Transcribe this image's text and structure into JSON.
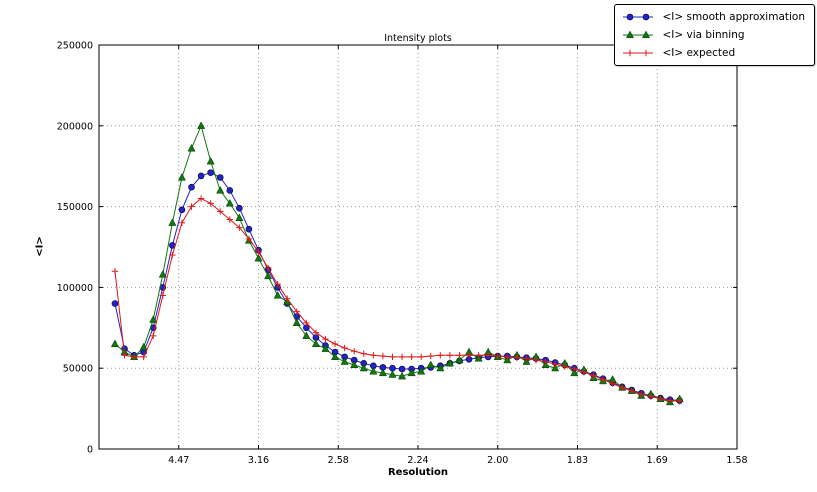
{
  "chart_data": {
    "type": "line",
    "title": "Intensity plots",
    "xlabel": "Resolution",
    "ylabel": "<I>",
    "xlim": [
      0,
      0.4
    ],
    "ylim": [
      0,
      250000
    ],
    "grid": true,
    "legend_position": "upper right",
    "x_ticks": {
      "positions": [
        0.05,
        0.1,
        0.15,
        0.2,
        0.25,
        0.3,
        0.35,
        0.4
      ],
      "labels": [
        "4.47",
        "3.16",
        "2.58",
        "2.24",
        "2.00",
        "1.83",
        "1.69",
        "1.58"
      ]
    },
    "y_ticks": {
      "positions": [
        0,
        50000,
        100000,
        150000,
        200000,
        250000
      ],
      "labels": [
        "0",
        "50000",
        "100000",
        "150000",
        "200000",
        "250000"
      ]
    },
    "x": [
      0.01,
      0.016,
      0.022,
      0.028,
      0.034,
      0.04,
      0.046,
      0.052,
      0.058,
      0.064,
      0.07,
      0.076,
      0.082,
      0.088,
      0.094,
      0.1,
      0.106,
      0.112,
      0.118,
      0.124,
      0.13,
      0.136,
      0.142,
      0.148,
      0.154,
      0.16,
      0.166,
      0.172,
      0.178,
      0.184,
      0.19,
      0.196,
      0.202,
      0.208,
      0.214,
      0.22,
      0.226,
      0.232,
      0.238,
      0.244,
      0.25,
      0.256,
      0.262,
      0.268,
      0.274,
      0.28,
      0.286,
      0.292,
      0.298,
      0.304,
      0.31,
      0.316,
      0.322,
      0.328,
      0.334,
      0.34,
      0.346,
      0.352,
      0.358,
      0.364
    ],
    "series": [
      {
        "name": "<I> smooth approximation",
        "marker": "circle",
        "color": "#2222cc",
        "values": [
          90000,
          62000,
          58000,
          60000,
          75000,
          100000,
          126000,
          148000,
          162000,
          169000,
          171000,
          168000,
          160000,
          149000,
          136000,
          123000,
          111000,
          100000,
          90000,
          82000,
          75000,
          69000,
          64000,
          60000,
          57000,
          55000,
          53000,
          51500,
          50500,
          50000,
          49500,
          49500,
          50000,
          50500,
          51500,
          53000,
          54500,
          55500,
          56500,
          57000,
          57500,
          57500,
          57000,
          56500,
          56000,
          55000,
          53500,
          52000,
          50000,
          48000,
          46000,
          43500,
          41000,
          38500,
          36500,
          34500,
          33000,
          31500,
          30500,
          30000
        ]
      },
      {
        "name": "<I> via binning",
        "marker": "triangle",
        "color": "#117711",
        "values": [
          65000,
          60000,
          57000,
          63000,
          80000,
          108000,
          140000,
          168000,
          186000,
          200000,
          178000,
          160000,
          152000,
          143000,
          129000,
          118000,
          107000,
          95000,
          91000,
          78000,
          70000,
          65000,
          62000,
          57000,
          54000,
          52000,
          50000,
          48000,
          47000,
          46000,
          45000,
          47000,
          48000,
          52000,
          50000,
          53000,
          55000,
          60000,
          56000,
          60000,
          57000,
          55000,
          58000,
          54000,
          57000,
          52000,
          50000,
          53000,
          47000,
          49000,
          44000,
          42000,
          43000,
          38000,
          36000,
          33000,
          34000,
          31000,
          29000,
          31000
        ]
      },
      {
        "name": "<I> expected",
        "marker": "plus",
        "color": "#e01818",
        "values": [
          110000,
          58000,
          57000,
          57000,
          70000,
          95000,
          120000,
          140000,
          150000,
          155000,
          152000,
          147000,
          142000,
          137000,
          130000,
          122000,
          112000,
          102000,
          93000,
          85000,
          78000,
          72000,
          68000,
          65000,
          62500,
          60500,
          59000,
          58000,
          57500,
          57000,
          57000,
          57000,
          57000,
          57500,
          58000,
          58000,
          58000,
          58000,
          58000,
          58000,
          57500,
          57000,
          56500,
          56000,
          55000,
          54000,
          52500,
          51000,
          49500,
          47500,
          45500,
          43000,
          40500,
          38000,
          36000,
          34000,
          32500,
          31000,
          30000,
          29500
        ]
      }
    ]
  }
}
